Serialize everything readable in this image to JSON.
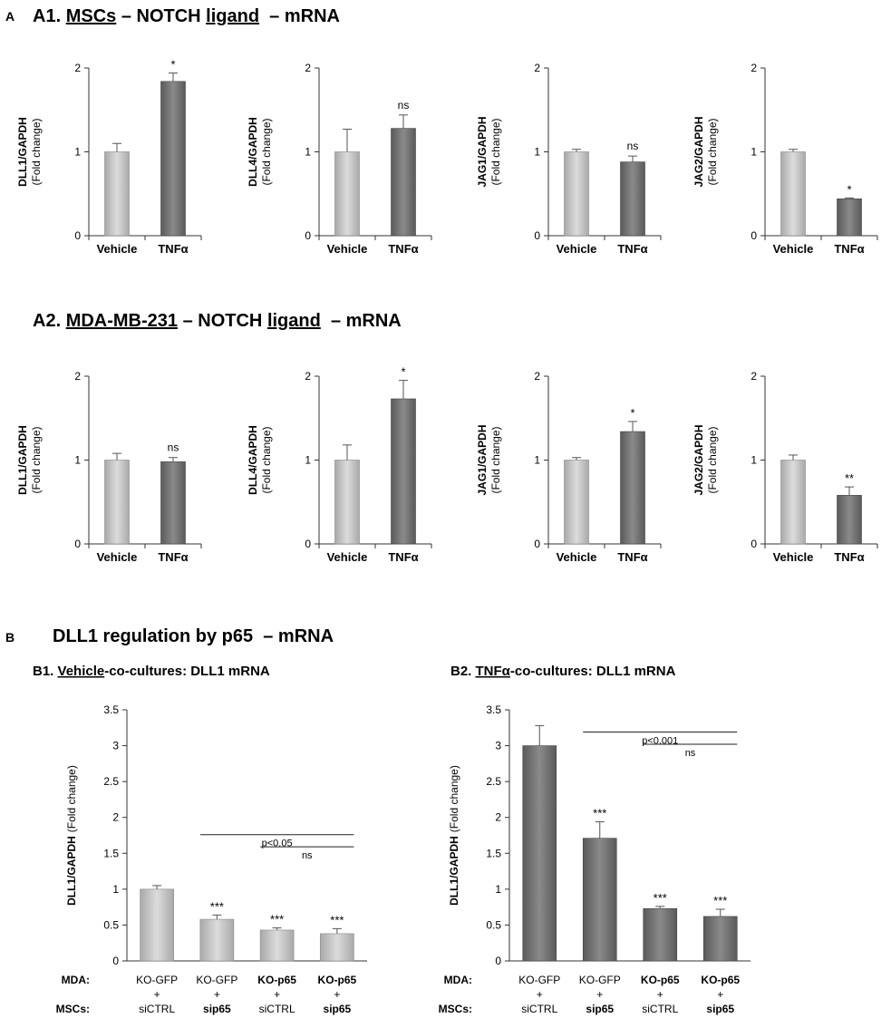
{
  "panel_labels": {
    "a": "A",
    "b": "B"
  },
  "headings": {
    "a1": {
      "prefix": "A1. ",
      "u1": "MSCs",
      "mid": " – NOTCH ",
      "u2": "ligand",
      "suffix": "  – mRNA"
    },
    "a2": {
      "prefix": "A2. ",
      "u1": "MDA-MB-231",
      "mid": " – NOTCH ",
      "u2": "ligand",
      "suffix": "  – mRNA"
    },
    "b": "DLL1 regulation by p65  – mRNA",
    "b1": {
      "prefix": "B1. ",
      "u": "Vehicle",
      "suffix": "-co-cultures: DLL1 mRNA"
    },
    "b2": {
      "prefix": "B2. ",
      "u": "TNFα",
      "suffix": "-co-cultures: DLL1 mRNA"
    }
  },
  "colors": {
    "light_bar": "#c4c4c4",
    "dark_bar": "#6e6e6e",
    "axis": "#333333"
  },
  "chart_data": [
    {
      "id": "a1-dll1",
      "type": "bar",
      "ylabel_bold": "DLL1/GAPDH",
      "ylabel_sub": "(Fold change)",
      "categories": [
        "Vehicle",
        "TNFα"
      ],
      "values": [
        1.0,
        1.84
      ],
      "errors": [
        0.1,
        0.1
      ],
      "annotations": [
        "",
        "*"
      ],
      "ylim": [
        0,
        2
      ],
      "yticks": [
        "0",
        "1",
        "2"
      ],
      "bar_styles": [
        "light",
        "dark"
      ]
    },
    {
      "id": "a1-dll4",
      "type": "bar",
      "ylabel_bold": "DLL4/GAPDH",
      "ylabel_sub": "(Fold change)",
      "categories": [
        "Vehicle",
        "TNFα"
      ],
      "values": [
        1.0,
        1.28
      ],
      "errors": [
        0.27,
        0.16
      ],
      "annotations": [
        "",
        "ns"
      ],
      "ylim": [
        0,
        2
      ],
      "yticks": [
        "0",
        "1",
        "2"
      ],
      "bar_styles": [
        "light",
        "dark"
      ]
    },
    {
      "id": "a1-jag1",
      "type": "bar",
      "ylabel_bold": "JAG1/GAPDH",
      "ylabel_sub": "(Fold change)",
      "categories": [
        "Vehicle",
        "TNFα"
      ],
      "values": [
        1.0,
        0.88
      ],
      "errors": [
        0.03,
        0.07
      ],
      "annotations": [
        "",
        "ns"
      ],
      "ylim": [
        0,
        2
      ],
      "yticks": [
        "0",
        "1",
        "2"
      ],
      "bar_styles": [
        "light",
        "dark"
      ]
    },
    {
      "id": "a1-jag2",
      "type": "bar",
      "ylabel_bold": "JAG2/GAPDH",
      "ylabel_sub": "(Fold change)",
      "categories": [
        "Vehicle",
        "TNFα"
      ],
      "values": [
        1.0,
        0.44
      ],
      "errors": [
        0.03,
        0.01
      ],
      "annotations": [
        "",
        "*"
      ],
      "ylim": [
        0,
        2
      ],
      "yticks": [
        "0",
        "1",
        "2"
      ],
      "bar_styles": [
        "light",
        "dark"
      ]
    },
    {
      "id": "a2-dll1",
      "type": "bar",
      "ylabel_bold": "DLL1/GAPDH",
      "ylabel_sub": "(Fold change)",
      "categories": [
        "Vehicle",
        "TNFα"
      ],
      "values": [
        1.0,
        0.98
      ],
      "errors": [
        0.08,
        0.05
      ],
      "annotations": [
        "",
        "ns"
      ],
      "ylim": [
        0,
        2
      ],
      "yticks": [
        "0",
        "1",
        "2"
      ],
      "bar_styles": [
        "light",
        "dark"
      ]
    },
    {
      "id": "a2-dll4",
      "type": "bar",
      "ylabel_bold": "DLL4/GAPDH",
      "ylabel_sub": "(Fold change)",
      "categories": [
        "Vehicle",
        "TNFα"
      ],
      "values": [
        1.0,
        1.73
      ],
      "errors": [
        0.18,
        0.22
      ],
      "annotations": [
        "",
        "*"
      ],
      "ylim": [
        0,
        2
      ],
      "yticks": [
        "0",
        "1",
        "2"
      ],
      "bar_styles": [
        "light",
        "dark"
      ]
    },
    {
      "id": "a2-jag1",
      "type": "bar",
      "ylabel_bold": "JAG1/GAPDH",
      "ylabel_sub": "(Fold change)",
      "categories": [
        "Vehicle",
        "TNFα"
      ],
      "values": [
        1.0,
        1.34
      ],
      "errors": [
        0.03,
        0.12
      ],
      "annotations": [
        "",
        "*"
      ],
      "ylim": [
        0,
        2
      ],
      "yticks": [
        "0",
        "1",
        "2"
      ],
      "bar_styles": [
        "light",
        "dark"
      ]
    },
    {
      "id": "a2-jag2",
      "type": "bar",
      "ylabel_bold": "JAG2/GAPDH",
      "ylabel_sub": "(Fold change)",
      "categories": [
        "Vehicle",
        "TNFα"
      ],
      "values": [
        1.0,
        0.58
      ],
      "errors": [
        0.06,
        0.1
      ],
      "annotations": [
        "",
        "**"
      ],
      "ylim": [
        0,
        2
      ],
      "yticks": [
        "0",
        "1",
        "2"
      ],
      "bar_styles": [
        "light",
        "dark"
      ]
    },
    {
      "id": "b1",
      "type": "bar",
      "ylabel_bold": "DLL1/GAPDH",
      "ylabel_sub": "(Fold change)",
      "ylim": [
        0,
        3.5
      ],
      "yticks": [
        "0",
        "0.5",
        "1",
        "1.5",
        "2",
        "2.5",
        "3",
        "3.5"
      ],
      "values": [
        1.0,
        0.58,
        0.43,
        0.38
      ],
      "errors": [
        0.05,
        0.06,
        0.03,
        0.07
      ],
      "annotations": [
        "",
        "***",
        "***",
        "***"
      ],
      "bar_styles": [
        "light",
        "light",
        "light",
        "light"
      ],
      "row_labels": {
        "mda": "MDA:",
        "mscs": "MSCs:"
      },
      "groups": [
        {
          "mda": "KO-GFP",
          "plus": "+",
          "mscs": "siCTRL",
          "mda_bold": false,
          "mscs_bold": false
        },
        {
          "mda": "KO-GFP",
          "plus": "+",
          "mscs": "sip65",
          "mda_bold": false,
          "mscs_bold": true
        },
        {
          "mda": "KO-p65",
          "plus": "+",
          "mscs": "siCTRL",
          "mda_bold": true,
          "mscs_bold": false
        },
        {
          "mda": "KO-p65",
          "plus": "+",
          "mscs": "sip65",
          "mda_bold": true,
          "mscs_bold": true
        }
      ],
      "brackets": [
        {
          "from": 1,
          "to": 3,
          "y": 1.76,
          "label": "p<0.05"
        },
        {
          "from": 2,
          "to": 3,
          "y": 1.59,
          "label": "ns"
        }
      ]
    },
    {
      "id": "b2",
      "type": "bar",
      "ylabel_bold": "DLL1/GAPDH",
      "ylabel_sub": "(Fold change)",
      "ylim": [
        0,
        3.5
      ],
      "yticks": [
        "0",
        "0.5",
        "1",
        "1.5",
        "2",
        "2.5",
        "3",
        "3.5"
      ],
      "values": [
        3.0,
        1.71,
        0.73,
        0.62
      ],
      "errors": [
        0.28,
        0.23,
        0.03,
        0.1
      ],
      "annotations": [
        "",
        "***",
        "***",
        "***"
      ],
      "bar_styles": [
        "dark",
        "dark",
        "dark",
        "dark"
      ],
      "row_labels": {
        "mda": "MDA:",
        "mscs": "MSCs:"
      },
      "groups": [
        {
          "mda": "KO-GFP",
          "plus": "+",
          "mscs": "siCTRL",
          "mda_bold": false,
          "mscs_bold": false
        },
        {
          "mda": "KO-GFP",
          "plus": "+",
          "mscs": "sip65",
          "mda_bold": false,
          "mscs_bold": true
        },
        {
          "mda": "KO-p65",
          "plus": "+",
          "mscs": "siCTRL",
          "mda_bold": true,
          "mscs_bold": false
        },
        {
          "mda": "KO-p65",
          "plus": "+",
          "mscs": "sip65",
          "mda_bold": true,
          "mscs_bold": true
        }
      ],
      "brackets": [
        {
          "from": 1,
          "to": 3,
          "y": 3.19,
          "label": "p<0.001"
        },
        {
          "from": 2,
          "to": 3,
          "y": 3.02,
          "label": "ns"
        }
      ]
    }
  ]
}
